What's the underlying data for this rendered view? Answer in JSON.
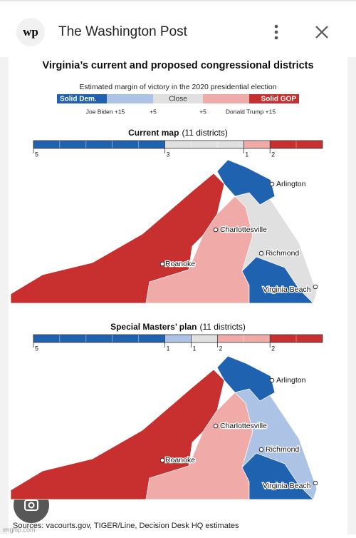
{
  "header": {
    "app_name": "The Washington Post",
    "logo": "wp"
  },
  "title": "Virginia’s current and proposed congressional districts",
  "legend": {
    "subtitle": "Estimated margin of victory in the 2020 presidential election",
    "categories": [
      "Solid Dem.",
      "Close",
      "Solid GOP"
    ],
    "ticks": [
      "Joe Biden +15",
      "+5",
      "+5",
      "Donald Trump +15"
    ]
  },
  "panels": [
    {
      "heading": "Current map",
      "note": "(11 districts)",
      "segments": [
        {
          "count": 5,
          "color": "#1f63b0"
        },
        {
          "count": 3,
          "color": "#e0e0e0"
        },
        {
          "count": 1,
          "color": "#f0aaa7"
        },
        {
          "count": 2,
          "color": "#c7302f"
        }
      ],
      "cities": [
        "Arlington",
        "Charlottesville",
        "Richmond",
        "Roanoke",
        "Virginia Beach"
      ]
    },
    {
      "heading": "Special Masters’ plan",
      "note": "(11 districts)",
      "segments": [
        {
          "count": 5,
          "color": "#1f63b0"
        },
        {
          "count": 1,
          "color": "#adc3e6"
        },
        {
          "count": 1,
          "color": "#e0e0e0"
        },
        {
          "count": 2,
          "color": "#f0aaa7"
        },
        {
          "count": 2,
          "color": "#c7302f"
        }
      ],
      "cities": [
        "Arlington",
        "Charlottesville",
        "Richmond",
        "Roanoke",
        "Virginia Beach"
      ]
    }
  ],
  "source": "Sources: vacourts.gov, TIGER/Line, Decision Desk HQ estimates",
  "watermark": "imgflip.com"
}
